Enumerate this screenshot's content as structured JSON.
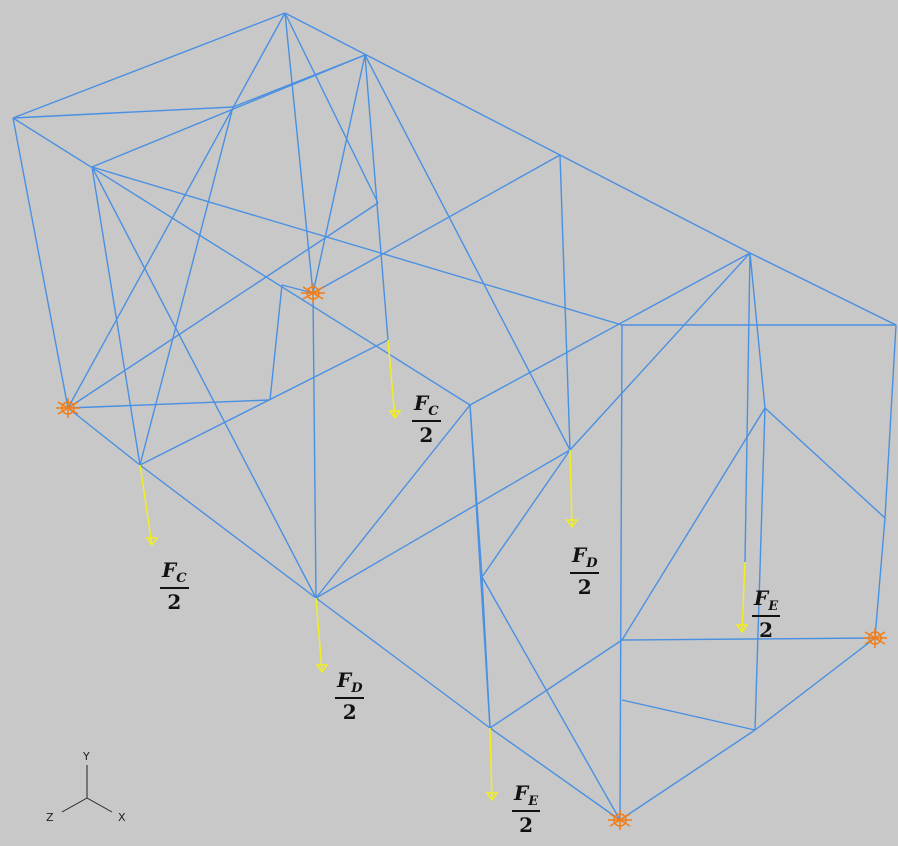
{
  "loads": [
    {
      "symbol": "F",
      "subscript": "C",
      "denominator": "2"
    },
    {
      "symbol": "F",
      "subscript": "C",
      "denominator": "2"
    },
    {
      "symbol": "F",
      "subscript": "D",
      "denominator": "2"
    },
    {
      "symbol": "F",
      "subscript": "D",
      "denominator": "2"
    },
    {
      "symbol": "F",
      "subscript": "E",
      "denominator": "2"
    },
    {
      "symbol": "F",
      "subscript": "E",
      "denominator": "2"
    }
  ],
  "axes": {
    "y": "Y",
    "z": "Z",
    "x": "X"
  }
}
